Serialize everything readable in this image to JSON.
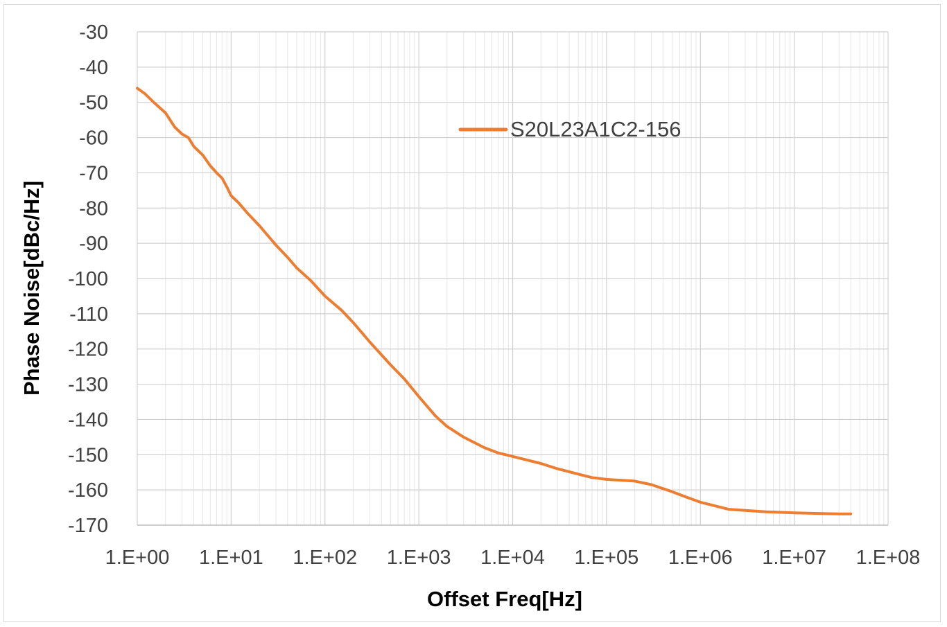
{
  "chart_data": {
    "type": "line",
    "title": "",
    "xlabel": "Offset Freq[Hz]",
    "ylabel": "Phase Noise[dBc/Hz]",
    "x_scale": "log",
    "xlim": [
      1,
      100000000
    ],
    "ylim": [
      -170,
      -30
    ],
    "x_ticks": [
      1,
      10,
      100,
      1000,
      10000,
      100000,
      1000000,
      10000000,
      100000000
    ],
    "x_tick_labels": [
      "1.E+00",
      "1.E+01",
      "1.E+02",
      "1.E+03",
      "1.E+04",
      "1.E+05",
      "1.E+06",
      "1.E+07",
      "1.E+08"
    ],
    "y_ticks": [
      -30,
      -40,
      -50,
      -60,
      -70,
      -80,
      -90,
      -100,
      -110,
      -120,
      -130,
      -140,
      -150,
      -160,
      -170
    ],
    "y_tick_labels": [
      "-30",
      "-40",
      "-50",
      "-60",
      "-70",
      "-80",
      "-90",
      "-100",
      "-110",
      "-120",
      "-130",
      "-140",
      "-150",
      "-160",
      "-170"
    ],
    "grid": true,
    "legend_position": "top-center",
    "series": [
      {
        "name": "S20L23A1C2-156",
        "color": "#ED7D31",
        "x": [
          1,
          1.2,
          1.5,
          2,
          2.5,
          3,
          3.5,
          4,
          5,
          6,
          7,
          8,
          9,
          10,
          12,
          15,
          20,
          30,
          40,
          50,
          70,
          100,
          150,
          200,
          300,
          500,
          700,
          1000,
          1500,
          2000,
          3000,
          5000,
          7000,
          10000,
          20000,
          30000,
          50000,
          70000,
          100000,
          200000,
          300000,
          500000,
          700000,
          1000000,
          2000000,
          5000000,
          10000000,
          20000000,
          30000000,
          40000000
        ],
        "y": [
          -46,
          -47.5,
          -50,
          -53,
          -57,
          -59,
          -60,
          -62.5,
          -65,
          -68,
          -70,
          -71.5,
          -74,
          -76.5,
          -78.5,
          -81.5,
          -85,
          -90.5,
          -94,
          -97,
          -100.5,
          -105,
          -109,
          -112.5,
          -118,
          -124.5,
          -128.5,
          -133.5,
          -139,
          -142,
          -145,
          -148,
          -149.5,
          -150.5,
          -152.5,
          -154,
          -155.5,
          -156.5,
          -157,
          -157.5,
          -158.5,
          -160.5,
          -162,
          -163.5,
          -165.5,
          -166.2,
          -166.5,
          -166.7,
          -166.8,
          -166.8
        ]
      }
    ]
  }
}
